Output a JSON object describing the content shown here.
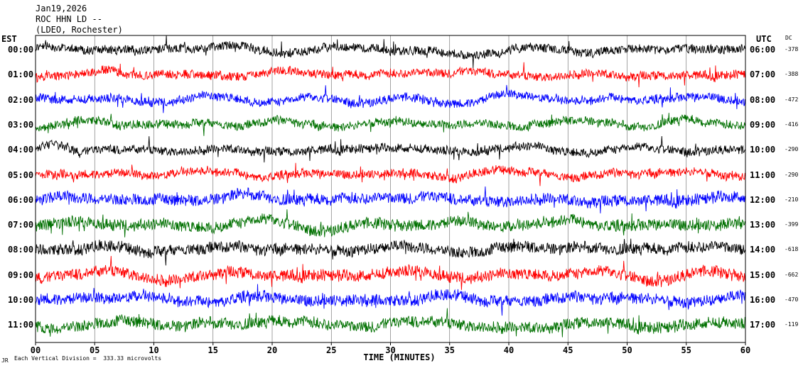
{
  "header": {
    "date": "Jan19,2026",
    "station": "ROC HHN LD --",
    "network": "(LDEO, Rochester)"
  },
  "left_axis_title": "EST",
  "right_axis_title": "UTC",
  "dc_title": "DC",
  "footer": {
    "scale_note": "Each Vertical Division =  333.33 microvolts",
    "corner_mark": "JR"
  },
  "chart_data": {
    "type": "line",
    "title": "",
    "xlabel": "TIME (MINUTES)",
    "xlim": [
      0,
      60
    ],
    "x_ticks": [
      "00",
      "05",
      "10",
      "15",
      "20",
      "25",
      "30",
      "35",
      "40",
      "45",
      "50",
      "55",
      "60"
    ],
    "grid": true,
    "trace_colors": [
      "#000000",
      "#ff0000",
      "#0000ff",
      "#007000"
    ],
    "rows": [
      {
        "est": "00:00",
        "utc": "06:00",
        "dc": "-378"
      },
      {
        "est": "01:00",
        "utc": "07:00",
        "dc": "-388"
      },
      {
        "est": "02:00",
        "utc": "08:00",
        "dc": "-472"
      },
      {
        "est": "03:00",
        "utc": "09:00",
        "dc": "-416"
      },
      {
        "est": "04:00",
        "utc": "10:00",
        "dc": "-290"
      },
      {
        "est": "05:00",
        "utc": "11:00",
        "dc": "-290"
      },
      {
        "est": "06:00",
        "utc": "12:00",
        "dc": "-210"
      },
      {
        "est": "07:00",
        "utc": "13:00",
        "dc": "-399"
      },
      {
        "est": "08:00",
        "utc": "14:00",
        "dc": "-618"
      },
      {
        "est": "09:00",
        "utc": "15:00",
        "dc": "-662"
      },
      {
        "est": "10:00",
        "utc": "16:00",
        "dc": "-470"
      },
      {
        "est": "11:00",
        "utc": "17:00",
        "dc": "-119"
      }
    ]
  }
}
